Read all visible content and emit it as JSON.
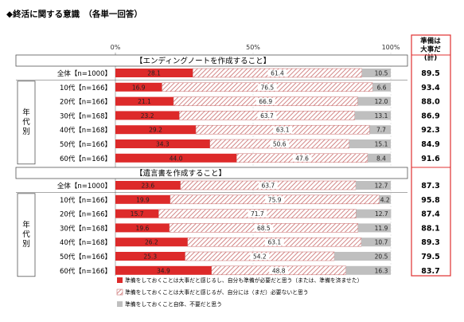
{
  "title": "◆終活に関する意識　（各単一回答）",
  "axis_ticks": [
    "0%",
    "50%",
    "100%"
  ],
  "right_header": [
    "準備は",
    "大事だ",
    "(計)"
  ],
  "group_label": "年代別",
  "colors": {
    "red": "#e03030",
    "hatch": "#d9a0a0",
    "gray": "#bfbfbf",
    "total_box": "#e03030"
  },
  "legend": [
    "準備をしておくことは大事だと感じるし、自分も準備が必要だと思う（または、準備を済ませた）",
    "準備をしておくことは大事だと感じるが、自分には（まだ）必要ないと思う",
    "準備をしておくこと自体、不要だと思う"
  ],
  "chart_data": {
    "type": "bar",
    "stacked": true,
    "orientation": "horizontal",
    "title": "◆終活に関する意識　（各単一回答）",
    "xlim": [
      0,
      100
    ],
    "series_names": [
      "準備をしておくことは大事だと感じるし、自分も準備が必要だと思う（または、準備を済ませた）",
      "準備をしておくことは大事だと感じるが、自分には（まだ）必要ないと思う",
      "準備をしておくこと自体、不要だと思う"
    ],
    "sections": [
      {
        "title": "【エンディングノートを作成すること】",
        "rows": [
          {
            "label": "全体【n=1000】",
            "values": [
              28.1,
              61.4,
              10.5
            ],
            "total": "89.5"
          },
          {
            "label": "10代【n=166】",
            "values": [
              16.9,
              76.5,
              6.6
            ],
            "total": "93.4"
          },
          {
            "label": "20代【n=166】",
            "values": [
              21.1,
              66.9,
              12.0
            ],
            "total": "88.0"
          },
          {
            "label": "30代【n=168】",
            "values": [
              23.2,
              63.7,
              13.1
            ],
            "total": "86.9"
          },
          {
            "label": "40代【n=168】",
            "values": [
              29.2,
              63.1,
              7.7
            ],
            "total": "92.3"
          },
          {
            "label": "50代【n=166】",
            "values": [
              34.3,
              50.6,
              15.1
            ],
            "total": "84.9"
          },
          {
            "label": "60代【n=166】",
            "values": [
              44.0,
              47.6,
              8.4
            ],
            "total": "91.6"
          }
        ]
      },
      {
        "title": "【遺言書を作成すること】",
        "rows": [
          {
            "label": "全体【n=1000】",
            "values": [
              23.6,
              63.7,
              12.7
            ],
            "total": "87.3"
          },
          {
            "label": "10代【n=166】",
            "values": [
              19.9,
              75.9,
              4.2
            ],
            "total": "95.8"
          },
          {
            "label": "20代【n=166】",
            "values": [
              15.7,
              71.7,
              12.7
            ],
            "total": "87.4"
          },
          {
            "label": "30代【n=168】",
            "values": [
              19.6,
              68.5,
              11.9
            ],
            "total": "88.1"
          },
          {
            "label": "40代【n=168】",
            "values": [
              26.2,
              63.1,
              10.7
            ],
            "total": "89.3"
          },
          {
            "label": "50代【n=166】",
            "values": [
              25.3,
              54.2,
              20.5
            ],
            "total": "79.5"
          },
          {
            "label": "60代【n=166】",
            "values": [
              34.9,
              48.8,
              16.3
            ],
            "total": "83.7"
          }
        ]
      }
    ]
  }
}
